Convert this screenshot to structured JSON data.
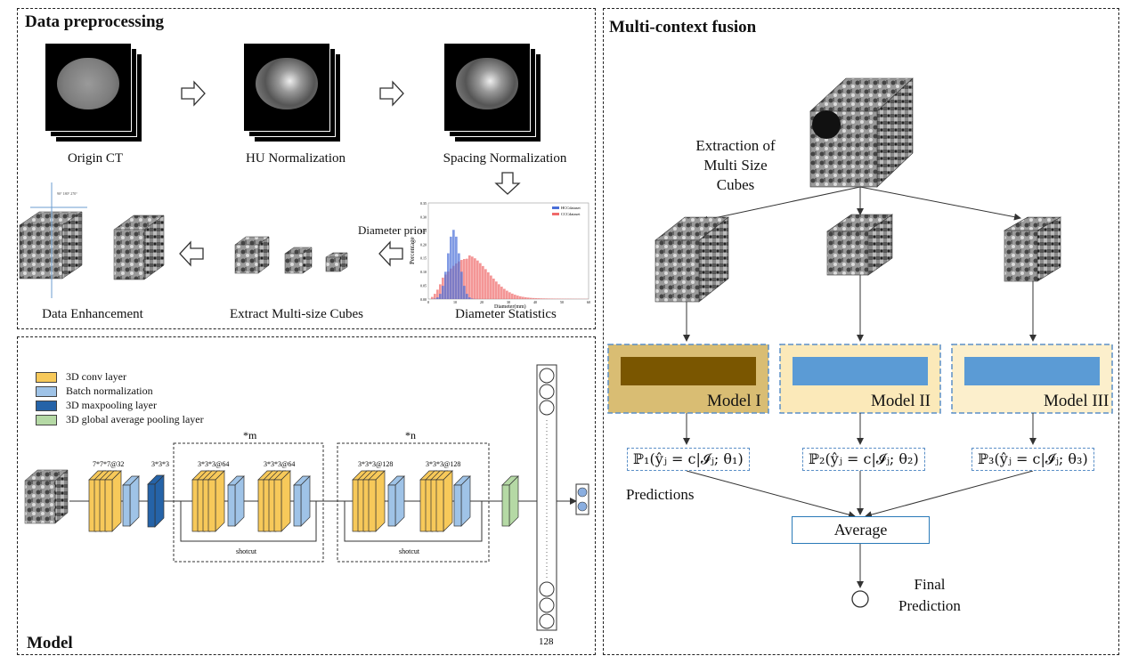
{
  "preprocessing": {
    "title": "Data preprocessing",
    "steps": [
      "Origin CT",
      "HU Normalization",
      "Spacing Normalization",
      "Diameter Statistics",
      "Extract Multi-size Cubes",
      "Data Enhancement"
    ],
    "diameter_prior": "Diameter prior",
    "hist_ylabel": "Percentage",
    "hist_xlabel": "Diameter(mm)",
    "hist_yticks": [
      "0.35",
      "0.30",
      "0.25",
      "0.20",
      "0.15",
      "0.10",
      "0.05",
      "0.00"
    ],
    "hist_xticks": [
      "0",
      "10",
      "20",
      "30",
      "40",
      "50",
      "60"
    ],
    "hist_legend": [
      "HCCdataset",
      "CCCdataset"
    ],
    "crosshair_text": "90° 180° 270°"
  },
  "model": {
    "title": "Model",
    "legend": [
      {
        "label": "3D conv layer",
        "color": "#f7c95a"
      },
      {
        "label": "Batch normalization",
        "color": "#9fc3e7"
      },
      {
        "label": "3D maxpooling layer",
        "color": "#2563a8"
      },
      {
        "label": "3D global average pooling layer",
        "color": "#b5d9a5"
      }
    ],
    "layer_labels": [
      "7*7*7@32",
      "3*3*3",
      "3*3*3@64",
      "3*3*3@64",
      "3*3*3@128",
      "3*3*3@128"
    ],
    "block_m": "*m",
    "block_n": "*n",
    "shortcut": "shotcut",
    "fc_size": "128"
  },
  "fusion": {
    "title": "Multi-context fusion",
    "extraction_label": [
      "Extraction of",
      "Multi Size",
      "Cubes"
    ],
    "models": [
      "Model I",
      "Model II",
      "Model III"
    ],
    "formulas": [
      "ℙ₁(ŷⱼ = c|𝓘ⱼ; θ₁)",
      "ℙ₂(ŷⱼ = c|𝓘ⱼ; θ₂)",
      "ℙ₃(ŷⱼ = c|𝓘ⱼ; θ₃)"
    ],
    "predictions": "Predictions",
    "average": "Average",
    "final": [
      "Final",
      "Prediction"
    ]
  }
}
